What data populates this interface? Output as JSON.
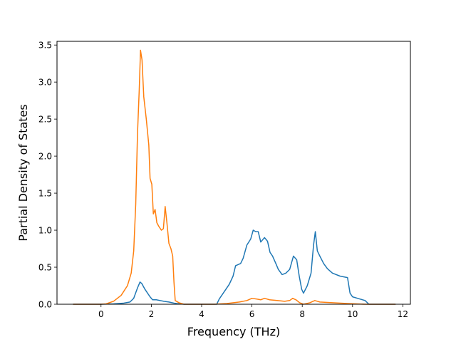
{
  "chart_data": {
    "type": "line",
    "title": "",
    "xlabel": "Frequency (THz)",
    "ylabel": "Partial Density of States",
    "xlim": [
      -1.75,
      12.3
    ],
    "ylim": [
      0,
      3.55
    ],
    "xticks": [
      0,
      2,
      4,
      6,
      8,
      10,
      12
    ],
    "yticks": [
      0.0,
      0.5,
      1.0,
      1.5,
      2.0,
      2.5,
      3.0,
      3.5
    ],
    "xtick_labels": [
      "0",
      "2",
      "4",
      "6",
      "8",
      "10",
      "12"
    ],
    "ytick_labels": [
      "0.0",
      "0.5",
      "1.0",
      "1.5",
      "2.0",
      "2.5",
      "3.0",
      "3.5"
    ],
    "grid": false,
    "legend": "none",
    "series": [
      {
        "color": "#1f77b4",
        "points": [
          [
            -1.1,
            0.0
          ],
          [
            0.0,
            0.0
          ],
          [
            0.5,
            0.005
          ],
          [
            0.9,
            0.015
          ],
          [
            1.15,
            0.03
          ],
          [
            1.3,
            0.08
          ],
          [
            1.45,
            0.22
          ],
          [
            1.55,
            0.3
          ],
          [
            1.62,
            0.28
          ],
          [
            1.75,
            0.2
          ],
          [
            1.95,
            0.1
          ],
          [
            2.05,
            0.06
          ],
          [
            2.2,
            0.06
          ],
          [
            2.35,
            0.05
          ],
          [
            2.5,
            0.04
          ],
          [
            2.7,
            0.03
          ],
          [
            2.9,
            0.015
          ],
          [
            3.1,
            0.005
          ],
          [
            3.3,
            0.0
          ],
          [
            4.6,
            0.0
          ],
          [
            4.7,
            0.07
          ],
          [
            4.9,
            0.17
          ],
          [
            5.1,
            0.27
          ],
          [
            5.25,
            0.38
          ],
          [
            5.35,
            0.52
          ],
          [
            5.55,
            0.55
          ],
          [
            5.65,
            0.62
          ],
          [
            5.8,
            0.8
          ],
          [
            5.95,
            0.88
          ],
          [
            6.05,
            1.0
          ],
          [
            6.15,
            0.98
          ],
          [
            6.25,
            0.98
          ],
          [
            6.35,
            0.84
          ],
          [
            6.5,
            0.9
          ],
          [
            6.62,
            0.85
          ],
          [
            6.72,
            0.7
          ],
          [
            6.82,
            0.65
          ],
          [
            6.95,
            0.55
          ],
          [
            7.05,
            0.47
          ],
          [
            7.2,
            0.4
          ],
          [
            7.35,
            0.42
          ],
          [
            7.5,
            0.47
          ],
          [
            7.65,
            0.65
          ],
          [
            7.78,
            0.6
          ],
          [
            7.88,
            0.38
          ],
          [
            7.98,
            0.2
          ],
          [
            8.05,
            0.15
          ],
          [
            8.2,
            0.25
          ],
          [
            8.35,
            0.42
          ],
          [
            8.45,
            0.8
          ],
          [
            8.52,
            0.98
          ],
          [
            8.6,
            0.72
          ],
          [
            8.7,
            0.65
          ],
          [
            8.85,
            0.55
          ],
          [
            9.0,
            0.48
          ],
          [
            9.2,
            0.42
          ],
          [
            9.5,
            0.38
          ],
          [
            9.8,
            0.36
          ],
          [
            9.9,
            0.15
          ],
          [
            10.0,
            0.1
          ],
          [
            10.2,
            0.08
          ],
          [
            10.5,
            0.05
          ],
          [
            10.65,
            0.0
          ],
          [
            11.7,
            0.0
          ]
        ]
      },
      {
        "color": "#ff7f0e",
        "points": [
          [
            -1.1,
            0.0
          ],
          [
            0.0,
            0.0
          ],
          [
            0.2,
            0.005
          ],
          [
            0.5,
            0.04
          ],
          [
            0.8,
            0.12
          ],
          [
            1.05,
            0.25
          ],
          [
            1.2,
            0.42
          ],
          [
            1.3,
            0.72
          ],
          [
            1.38,
            1.35
          ],
          [
            1.45,
            2.3
          ],
          [
            1.52,
            2.9
          ],
          [
            1.57,
            3.43
          ],
          [
            1.63,
            3.3
          ],
          [
            1.7,
            2.8
          ],
          [
            1.8,
            2.5
          ],
          [
            1.9,
            2.15
          ],
          [
            1.95,
            1.7
          ],
          [
            2.02,
            1.62
          ],
          [
            2.08,
            1.22
          ],
          [
            2.15,
            1.28
          ],
          [
            2.22,
            1.1
          ],
          [
            2.3,
            1.05
          ],
          [
            2.4,
            1.0
          ],
          [
            2.48,
            1.02
          ],
          [
            2.55,
            1.32
          ],
          [
            2.62,
            1.1
          ],
          [
            2.7,
            0.82
          ],
          [
            2.78,
            0.75
          ],
          [
            2.85,
            0.65
          ],
          [
            2.9,
            0.3
          ],
          [
            2.95,
            0.05
          ],
          [
            3.1,
            0.02
          ],
          [
            3.3,
            0.0
          ],
          [
            4.5,
            0.0
          ],
          [
            5.0,
            0.01
          ],
          [
            5.5,
            0.03
          ],
          [
            5.8,
            0.05
          ],
          [
            6.0,
            0.08
          ],
          [
            6.2,
            0.07
          ],
          [
            6.35,
            0.06
          ],
          [
            6.5,
            0.08
          ],
          [
            6.7,
            0.06
          ],
          [
            7.0,
            0.05
          ],
          [
            7.3,
            0.04
          ],
          [
            7.5,
            0.05
          ],
          [
            7.62,
            0.08
          ],
          [
            7.75,
            0.06
          ],
          [
            7.9,
            0.02
          ],
          [
            8.05,
            0.0
          ],
          [
            8.3,
            0.02
          ],
          [
            8.5,
            0.05
          ],
          [
            8.7,
            0.03
          ],
          [
            9.2,
            0.02
          ],
          [
            9.8,
            0.01
          ],
          [
            10.5,
            0.0
          ],
          [
            11.7,
            0.0
          ]
        ]
      }
    ]
  }
}
